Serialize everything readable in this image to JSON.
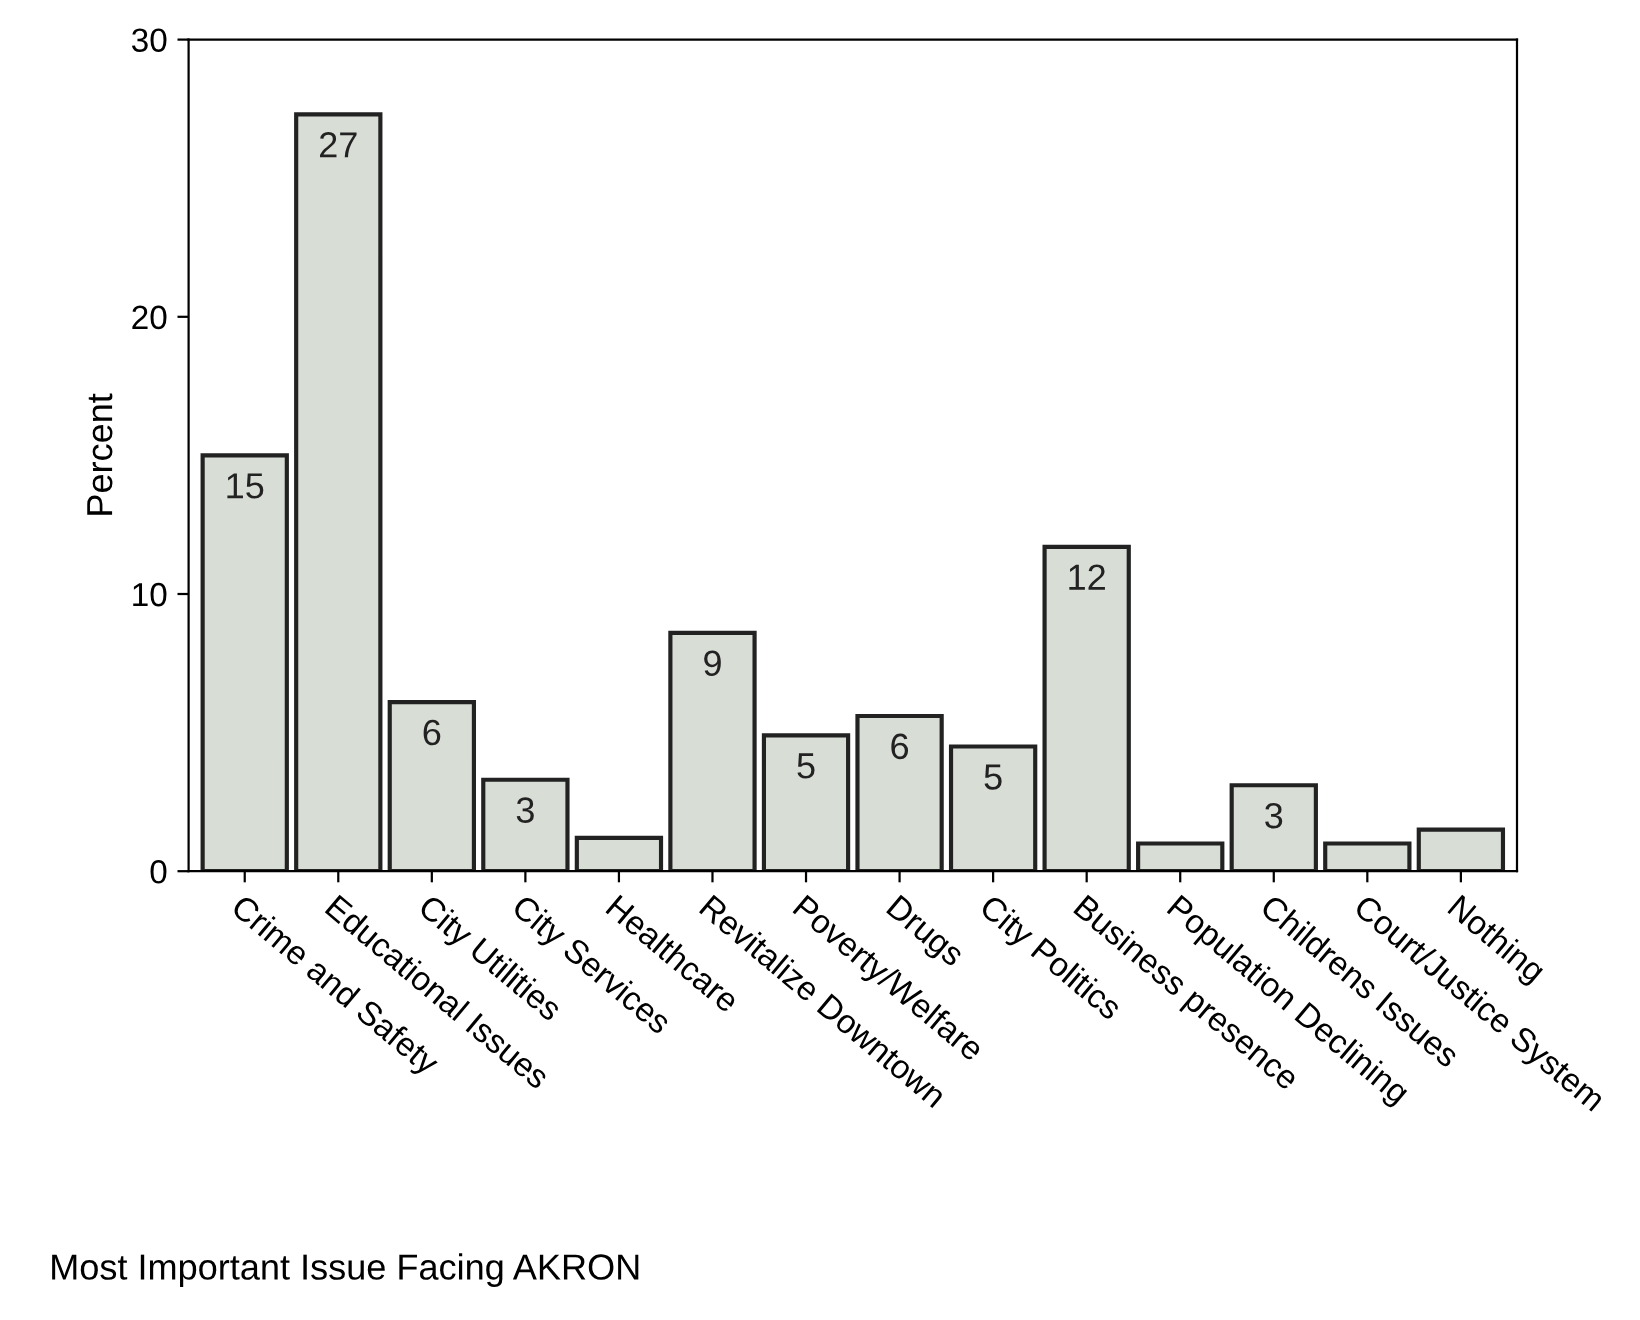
{
  "chart_data": {
    "type": "bar",
    "categories": [
      "Crime and Safety",
      "Educational Issues",
      "City Utilities",
      "City Services",
      "Healthcare",
      "Revitalize Downtown",
      "Poverty/Welfare",
      "Drugs",
      "City Politics",
      "Business presence",
      "Population Declining",
      "Childrens Issues",
      "Court/Justice System",
      "Nothing"
    ],
    "values": [
      15.0,
      27.3,
      6.1,
      3.3,
      1.2,
      8.6,
      4.9,
      5.6,
      4.5,
      11.7,
      1.0,
      3.1,
      1.0,
      1.5
    ],
    "value_labels": [
      "15",
      "27",
      "6",
      "3",
      null,
      "9",
      "5",
      "6",
      "5",
      "12",
      null,
      "3",
      null,
      null
    ],
    "color": "#d8ddd6",
    "ylim": [
      0,
      30
    ],
    "yticks": [
      0,
      10,
      20,
      30
    ],
    "ylabel": "Percent",
    "xlabel": "Most Important Issue Facing AKRON",
    "grid": false,
    "legend": false
  }
}
